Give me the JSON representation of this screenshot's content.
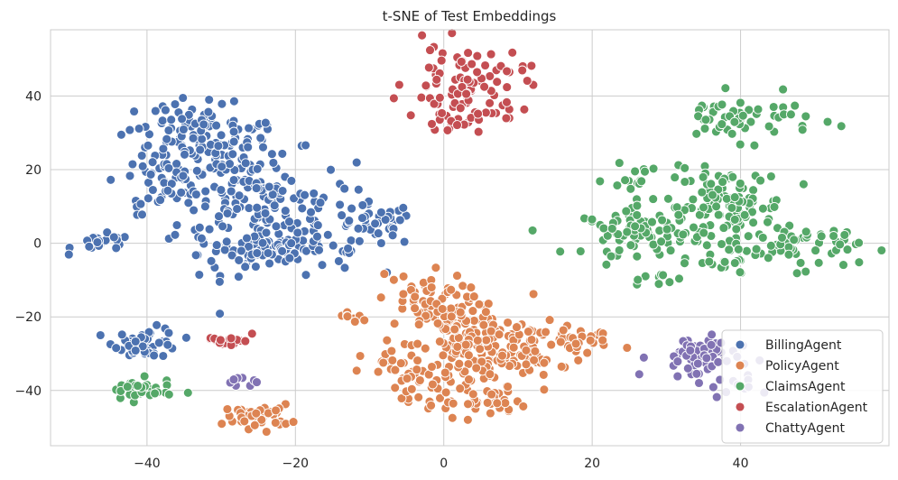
{
  "chart_data": {
    "type": "scatter",
    "title": "t-SNE of Test Embeddings",
    "xlabel": "",
    "ylabel": "",
    "xlim": [
      -53,
      60
    ],
    "ylim": [
      -55,
      58
    ],
    "x_ticks": [
      -40,
      -20,
      0,
      20,
      40
    ],
    "y_ticks": [
      -40,
      -20,
      0,
      20,
      40
    ],
    "grid": true,
    "legend_position": "bottom-right",
    "series": [
      {
        "name": "BillingAgent",
        "color": "#4c72b0",
        "clusters": [
          {
            "cx": -32,
            "cy": 22,
            "sx": 5,
            "sy": 7,
            "n": 130
          },
          {
            "cx": -24,
            "cy": 8,
            "sx": 6,
            "sy": 8,
            "n": 140
          },
          {
            "cx": -33,
            "cy": 32,
            "sx": 5,
            "sy": 3,
            "n": 50
          },
          {
            "cx": -25,
            "cy": -3,
            "sx": 4,
            "sy": 3,
            "n": 40
          },
          {
            "cx": -17,
            "cy": 0,
            "sx": 4,
            "sy": 4,
            "n": 30
          },
          {
            "cx": -9,
            "cy": 5,
            "sx": 2.5,
            "sy": 3,
            "n": 35
          },
          {
            "cx": -46,
            "cy": 0,
            "sx": 2,
            "sy": 1.2,
            "n": 22
          },
          {
            "cx": -40,
            "cy": -27,
            "sx": 2.2,
            "sy": 2,
            "n": 50
          },
          {
            "cx": -38,
            "cy": 16,
            "sx": 2,
            "sy": 4,
            "n": 20
          }
        ]
      },
      {
        "name": "PolicyAgent",
        "color": "#dd8452",
        "clusters": [
          {
            "cx": 4,
            "cy": -28,
            "sx": 4,
            "sy": 7,
            "n": 170
          },
          {
            "cx": 12,
            "cy": -28,
            "sx": 4,
            "sy": 4,
            "n": 60
          },
          {
            "cx": -3,
            "cy": -16,
            "sx": 3,
            "sy": 4,
            "n": 55
          },
          {
            "cx": 3,
            "cy": -43,
            "sx": 4,
            "sy": 2,
            "n": 40
          },
          {
            "cx": -5,
            "cy": -35,
            "sx": 3,
            "sy": 3,
            "n": 35
          },
          {
            "cx": 19,
            "cy": -27,
            "sx": 2.5,
            "sy": 1.5,
            "n": 15
          },
          {
            "cx": -12,
            "cy": -20,
            "sx": 1.2,
            "sy": 0.8,
            "n": 8
          },
          {
            "cx": -25,
            "cy": -47,
            "sx": 2.2,
            "sy": 1.6,
            "n": 45
          }
        ]
      },
      {
        "name": "ClaimsAgent",
        "color": "#55a868",
        "clusters": [
          {
            "cx": 38,
            "cy": 10,
            "sx": 4,
            "sy": 5,
            "n": 120
          },
          {
            "cx": 27,
            "cy": 3,
            "sx": 4,
            "sy": 3,
            "n": 80
          },
          {
            "cx": 48,
            "cy": -1,
            "sx": 4,
            "sy": 3,
            "n": 60
          },
          {
            "cx": 40,
            "cy": 34,
            "sx": 5,
            "sy": 3,
            "n": 55
          },
          {
            "cx": 26,
            "cy": 17,
            "sx": 2,
            "sy": 2,
            "n": 15
          },
          {
            "cx": 30,
            "cy": -10,
            "sx": 1.5,
            "sy": 2,
            "n": 10
          },
          {
            "cx": 38,
            "cy": -6,
            "sx": 2,
            "sy": 1.5,
            "n": 12
          },
          {
            "cx": -41,
            "cy": -40,
            "sx": 2.2,
            "sy": 1.5,
            "n": 40
          }
        ]
      },
      {
        "name": "EscalationAgent",
        "color": "#c44e52",
        "clusters": [
          {
            "cx": 3,
            "cy": 44,
            "sx": 4,
            "sy": 5,
            "n": 75
          },
          {
            "cx": 7,
            "cy": 37,
            "sx": 2.5,
            "sy": 2,
            "n": 15
          },
          {
            "cx": 0,
            "cy": 33,
            "sx": 2.5,
            "sy": 1.5,
            "n": 15
          },
          {
            "cx": -29,
            "cy": -26,
            "sx": 1.5,
            "sy": 1.2,
            "n": 18
          }
        ]
      },
      {
        "name": "ChattyAgent",
        "color": "#8172b3",
        "clusters": [
          {
            "cx": 34,
            "cy": -31,
            "sx": 3,
            "sy": 3,
            "n": 60
          },
          {
            "cx": 39,
            "cy": -39,
            "sx": 1.5,
            "sy": 1.5,
            "n": 10
          },
          {
            "cx": -28,
            "cy": -38,
            "sx": 1.5,
            "sy": 0.8,
            "n": 8
          }
        ]
      }
    ]
  }
}
